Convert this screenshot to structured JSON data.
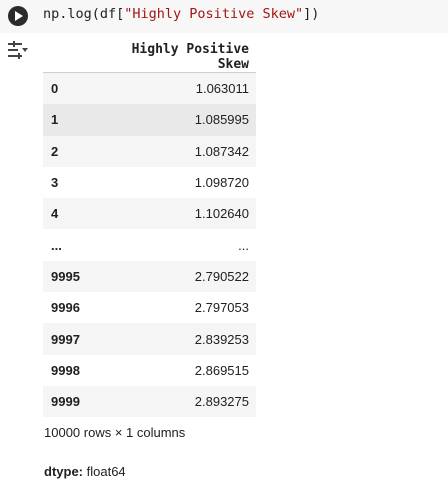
{
  "code_cell": {
    "func": "np.log(df[",
    "string": "\"Highly Positive Skew\"",
    "close": "])"
  },
  "table": {
    "column_header": "Highly Positive Skew",
    "rows": [
      {
        "index": "0",
        "value": "1.063011"
      },
      {
        "index": "1",
        "value": "1.085995"
      },
      {
        "index": "2",
        "value": "1.087342"
      },
      {
        "index": "3",
        "value": "1.098720"
      },
      {
        "index": "4",
        "value": "1.102640"
      },
      {
        "index": "...",
        "value": "..."
      },
      {
        "index": "9995",
        "value": "2.790522"
      },
      {
        "index": "9996",
        "value": "2.797053"
      },
      {
        "index": "9997",
        "value": "2.839253"
      },
      {
        "index": "9998",
        "value": "2.869515"
      },
      {
        "index": "9999",
        "value": "2.893275"
      }
    ]
  },
  "shape_text": "10000 rows × 1 columns",
  "dtype": {
    "label": "dtype:",
    "value": "float64"
  },
  "icons": {
    "run": "play-icon",
    "output_actions": "output-actions-icon"
  },
  "colors": {
    "string_literal": "#a31515",
    "run_button": "#2b2b2b",
    "row_stripe": "#f5f5f5"
  }
}
